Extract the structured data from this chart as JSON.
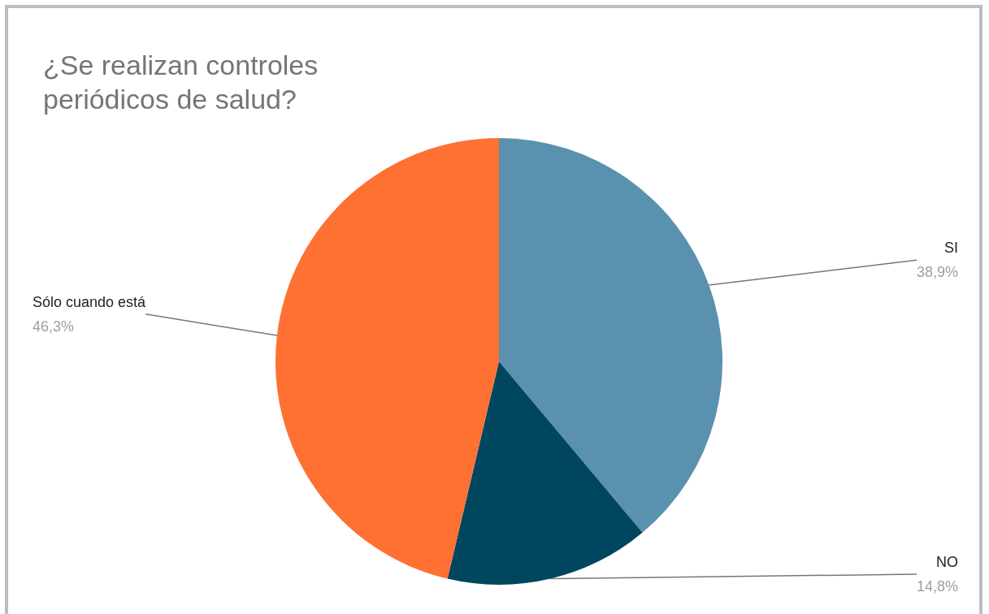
{
  "chart_data": {
    "type": "pie",
    "title": "¿Se realizan controles periódicos de salud?",
    "categories": [
      "SI",
      "NO",
      "Sólo cuando está"
    ],
    "values": [
      38.9,
      14.8,
      46.3
    ],
    "colors": [
      "#5a91af",
      "#00465f",
      "#ff7033"
    ],
    "value_labels": [
      "38,9%",
      "14,8%",
      "46,3%"
    ],
    "legend": false
  }
}
